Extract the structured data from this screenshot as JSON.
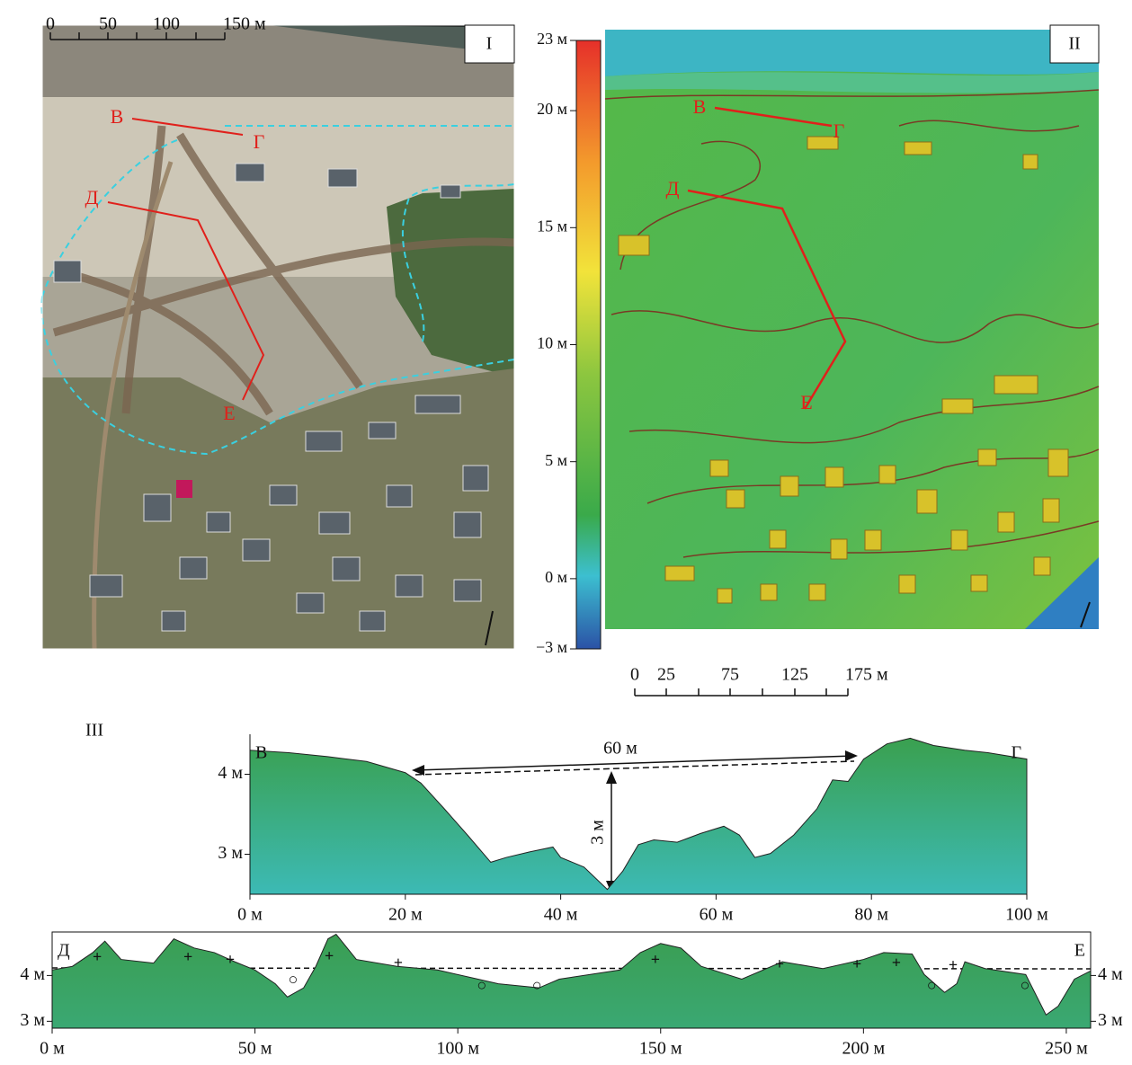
{
  "panel_i": {
    "label": "I",
    "scalebar": [
      "0",
      "50",
      "100",
      "150 м"
    ],
    "points": [
      "В",
      "Г",
      "Д",
      "Е"
    ]
  },
  "panel_ii": {
    "label": "II",
    "points": [
      "В",
      "Г",
      "Д",
      "Е"
    ],
    "scalebar": [
      "0",
      "25",
      "75",
      "125",
      "175 м"
    ],
    "colorbar": {
      "lim": [
        -3,
        23
      ],
      "ticks": [
        {
          "value": 23,
          "label": "23 м"
        },
        {
          "value": 20,
          "label": "20 м"
        },
        {
          "value": 15,
          "label": "15 м"
        },
        {
          "value": 10,
          "label": "10 м"
        },
        {
          "value": 5,
          "label": "5 м"
        },
        {
          "value": 0,
          "label": "0 м"
        },
        {
          "value": -3,
          "label": "−3 м"
        }
      ]
    }
  },
  "panel_iii_label": "III",
  "chart_data": [
    {
      "type": "area",
      "start_label": "В",
      "end_label": "Г",
      "annotations": [
        "60 м",
        "3 м"
      ],
      "color": "#3aa35a",
      "x": [
        0,
        5,
        10,
        15,
        20,
        22,
        25,
        28,
        31,
        33,
        36,
        39,
        40,
        43,
        46,
        48,
        50,
        52,
        55,
        58,
        61,
        63,
        65,
        67,
        70,
        73,
        75,
        77,
        79,
        82,
        85,
        88,
        92,
        95,
        100
      ],
      "values": [
        4.3,
        4.27,
        4.22,
        4.16,
        4.02,
        3.89,
        3.57,
        3.24,
        2.9,
        2.96,
        3.03,
        3.09,
        2.96,
        2.84,
        2.56,
        2.79,
        3.12,
        3.18,
        3.15,
        3.26,
        3.35,
        3.24,
        2.96,
        3.01,
        3.24,
        3.57,
        3.93,
        3.91,
        4.19,
        4.38,
        4.45,
        4.36,
        4.3,
        4.27,
        4.19
      ],
      "xlim": [
        0,
        100
      ],
      "xticks": [
        {
          "value": 0,
          "label": "0 м"
        },
        {
          "value": 20,
          "label": "20 м"
        },
        {
          "value": 40,
          "label": "40 м"
        },
        {
          "value": 60,
          "label": "60 м"
        },
        {
          "value": 80,
          "label": "80 м"
        },
        {
          "value": 100,
          "label": "100 м"
        }
      ],
      "ylim": [
        2.5,
        4.5
      ],
      "yticks": [
        {
          "value": 3,
          "label": "3 м"
        },
        {
          "value": 4,
          "label": "4 м"
        }
      ]
    },
    {
      "type": "area",
      "start_label": "Д",
      "end_label": "Е",
      "color": "#3a9e5a",
      "x": [
        0,
        5,
        10,
        13,
        17,
        25,
        30,
        35,
        40,
        45,
        50,
        55,
        58,
        62,
        65,
        68,
        70,
        75,
        85,
        95,
        105,
        110,
        120,
        125,
        140,
        145,
        150,
        155,
        160,
        170,
        180,
        190,
        200,
        205,
        212,
        215,
        220,
        223,
        225,
        230,
        240,
        245,
        248,
        252,
        256
      ],
      "values": [
        4.12,
        4.2,
        4.5,
        4.75,
        4.35,
        4.27,
        4.8,
        4.6,
        4.5,
        4.3,
        4.12,
        3.82,
        3.53,
        3.73,
        4.2,
        4.8,
        4.9,
        4.35,
        4.2,
        4.12,
        3.92,
        3.82,
        3.73,
        3.92,
        4.12,
        4.5,
        4.7,
        4.6,
        4.2,
        3.92,
        4.3,
        4.15,
        4.35,
        4.5,
        4.47,
        4.02,
        3.63,
        3.82,
        4.3,
        4.15,
        4.02,
        3.14,
        3.33,
        3.92,
        4.1
      ],
      "markers": [
        {
          "symbol": "+",
          "x": [
            11.1,
            33.5,
            43.9,
            68.3,
            85.3,
            148.7,
            179.3,
            198.4,
            208.1,
            222.1
          ],
          "y": [
            4.37,
            4.37,
            4.31,
            4.39,
            4.25,
            4.31,
            4.22,
            4.22,
            4.25,
            4.2
          ]
        },
        {
          "symbol": "○",
          "x": [
            59.4,
            105.9,
            119.5,
            216.8,
            239.8
          ],
          "y": [
            3.88,
            3.76,
            3.76,
            3.76,
            3.76
          ]
        }
      ],
      "xlim": [
        0,
        256
      ],
      "xticks": [
        {
          "value": 0,
          "label": "0 м"
        },
        {
          "value": 50,
          "label": "50 м"
        },
        {
          "value": 100,
          "label": "100 м"
        },
        {
          "value": 150,
          "label": "150 м"
        },
        {
          "value": 200,
          "label": "200 м"
        },
        {
          "value": 250,
          "label": "250 м"
        }
      ],
      "ylim": [
        2.85,
        4.95
      ],
      "yticks": [
        {
          "value": 3,
          "label": "3 м"
        },
        {
          "value": 4,
          "label": "4 м"
        }
      ]
    }
  ]
}
